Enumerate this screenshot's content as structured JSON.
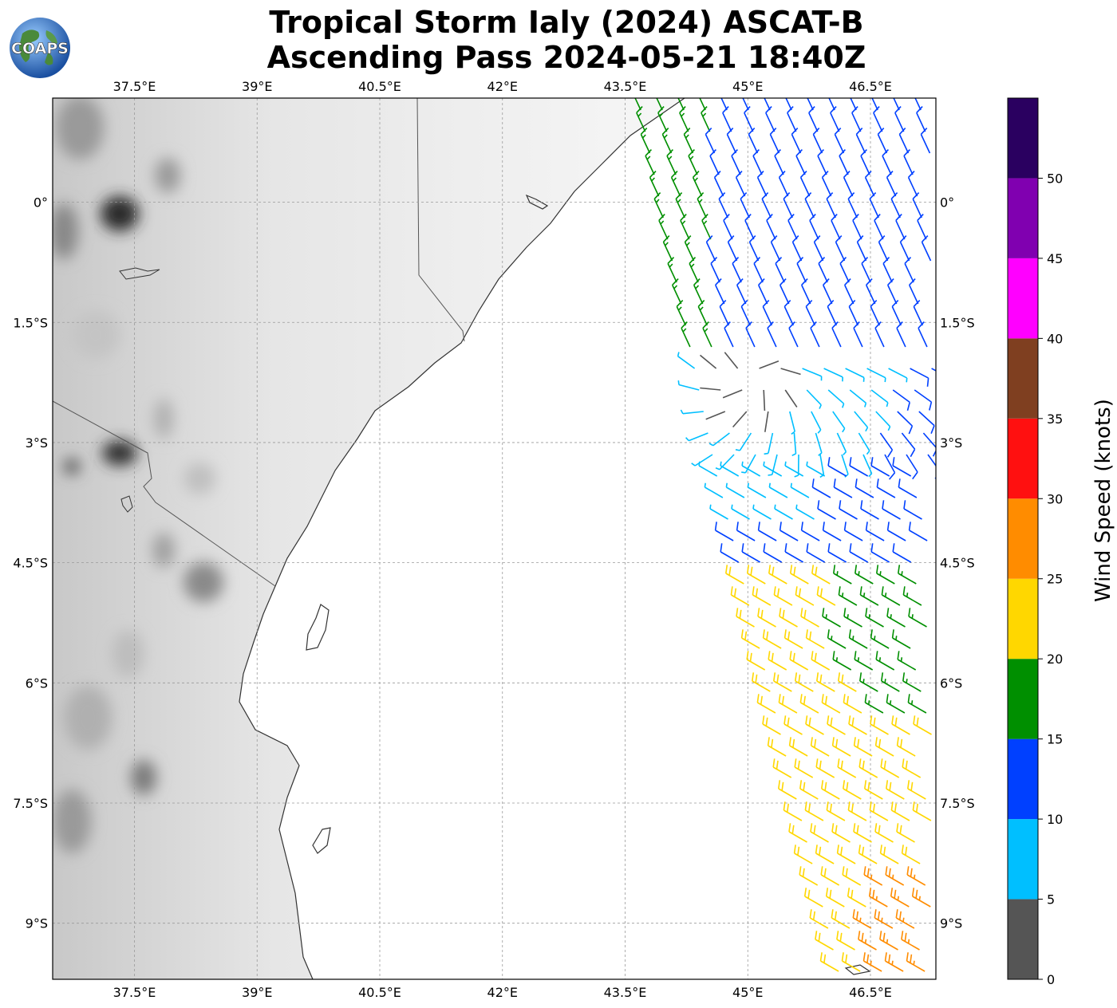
{
  "header": {
    "title_line1": "Tropical Storm Ialy (2024) ASCAT-B",
    "title_line2": "Ascending Pass 2024-05-21 18:40Z",
    "logo_text": "COAPS"
  },
  "map": {
    "lon_labels": [
      "37.5°E",
      "39°E",
      "40.5°E",
      "42°E",
      "43.5°E",
      "45°E",
      "46.5°E"
    ],
    "lat_labels": [
      "0°",
      "1.5°S",
      "3°S",
      "4.5°S",
      "6°S",
      "7.5°S",
      "9°S"
    ],
    "lon_values": [
      37.5,
      39,
      40.5,
      42,
      43.5,
      45,
      46.5
    ],
    "lat_values": [
      0,
      -1.5,
      -3,
      -4.5,
      -6,
      -7.5,
      -9
    ],
    "extent": {
      "lon_min": 36.5,
      "lon_max": 47.3,
      "lat_min": -9.7,
      "lat_max": 1.3
    },
    "gridlines": true,
    "land_shading": "grayscale topography",
    "barb_region": "ASCAT swath east of 43.5°E"
  },
  "colorbar": {
    "title": "Wind Speed (knots)",
    "tick_labels": [
      "0",
      "5",
      "10",
      "15",
      "20",
      "25",
      "30",
      "35",
      "40",
      "45",
      "50"
    ],
    "colors": [
      "#555555",
      "#00bfff",
      "#0040ff",
      "#008f00",
      "#ffd700",
      "#ff8c00",
      "#ff1010",
      "#7f3f20",
      "#ff00ff",
      "#8000b0",
      "#2a0060"
    ],
    "max": 55
  }
}
